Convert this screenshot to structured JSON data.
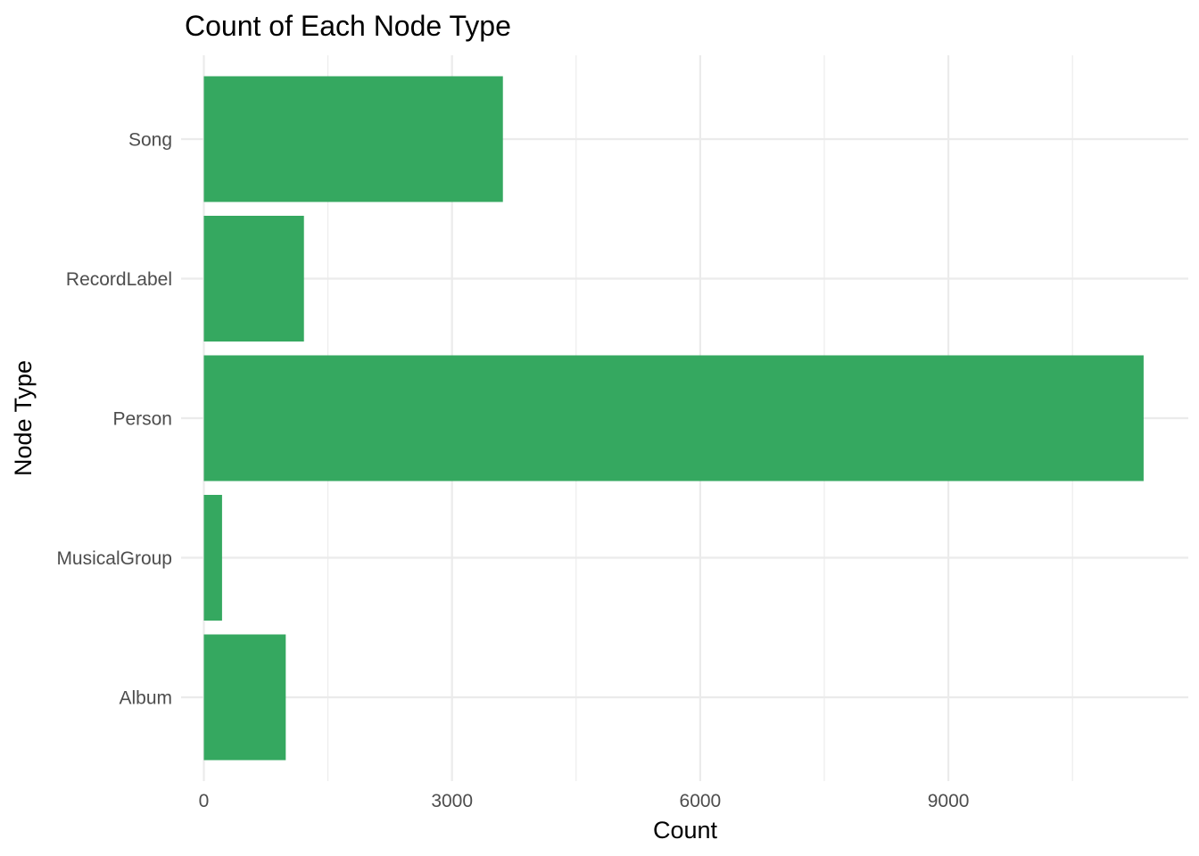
{
  "chart_data": {
    "type": "bar",
    "orientation": "horizontal",
    "title": "Count of Each Node Type",
    "xlabel": "Count",
    "ylabel": "Node Type",
    "categories": [
      "Album",
      "MusicalGroup",
      "Person",
      "RecordLabel",
      "Song"
    ],
    "values": [
      990,
      220,
      11360,
      1210,
      3615
    ],
    "xlim": [
      -275,
      11900
    ],
    "x_ticks": [
      0,
      3000,
      6000,
      9000
    ],
    "x_minor_ticks": [
      1500,
      4500,
      7500,
      10500
    ],
    "grid": true,
    "legend": "none",
    "bar_color": "#35A860"
  }
}
